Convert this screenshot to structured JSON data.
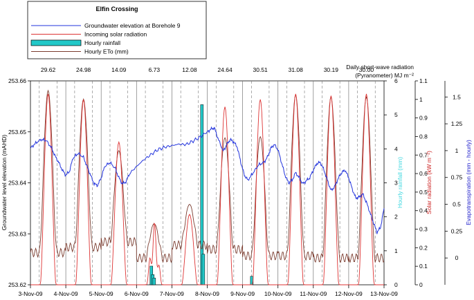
{
  "chart_data": {
    "type": "line",
    "title": "Elfin Crossing",
    "x_labels": [
      "3-Nov-09",
      "4-Nov-09",
      "5-Nov-09",
      "6-Nov-09",
      "7-Nov-09",
      "8-Nov-09",
      "9-Nov-09",
      "10-Nov-09",
      "11-Nov-09",
      "12-Nov-09",
      "13-Nov-09"
    ],
    "daily_radiation_title": "Daily short-wave radiation",
    "daily_radiation_unit": "(Pyranometer)  MJ m⁻²",
    "daily_radiation_totals": [
      "29.62",
      "24.98",
      "14.09",
      "6.73",
      "12.08",
      "24.64",
      "30.51",
      "31.08",
      "30.19",
      "30.00"
    ],
    "axes": {
      "groundwater": {
        "label": "Groundwater level elevation (mAHD)",
        "ylim": [
          253.62,
          253.66
        ],
        "ticks": [
          "253.62",
          "253.63",
          "253.64",
          "253.65",
          "253.66"
        ]
      },
      "rainfall": {
        "label": "Hourly rainfall (mm)",
        "ylim": [
          0,
          6
        ],
        "ticks": [
          "0",
          "1",
          "2",
          "3",
          "4",
          "5",
          "6"
        ],
        "color": "#3fd8e0"
      },
      "solar": {
        "label": "Solar radiation (kW m⁻²)",
        "ylim": [
          0,
          1.1
        ],
        "ticks": [
          "0",
          "0.1",
          "0.2",
          "0.3",
          "0.4",
          "0.5",
          "0.6",
          "0.7",
          "0.8",
          "0.9",
          "1",
          "1.1"
        ],
        "color": "#cc2020"
      },
      "eto": {
        "label": "Evapotranspiration (mm - hourly)",
        "ylim": [
          -0.25,
          1.65
        ],
        "ticks": [
          "0",
          "0.25",
          "0.5",
          "0.75",
          "1",
          "1.25",
          "1.5"
        ],
        "color": "#2020cc"
      }
    },
    "legend": {
      "position": "top-left",
      "entries": [
        {
          "label": "Groundwater elevation at Borehole 9",
          "color": "#2233dd",
          "kind": "line"
        },
        {
          "label": "Incoming solar radiation",
          "color": "#dd3333",
          "kind": "line"
        },
        {
          "label": "Hourly rainfall",
          "color": "#22c8c8",
          "kind": "bar"
        },
        {
          "label": "Hourly ETo (mm)",
          "color": "#7a3b2e",
          "kind": "line"
        }
      ]
    },
    "series": [
      {
        "name": "Groundwater elevation at Borehole 9",
        "axis": "groundwater",
        "x": [
          0,
          0.15,
          0.3,
          0.45,
          0.6,
          0.7,
          0.8,
          0.9,
          1.0,
          1.1,
          1.2,
          1.35,
          1.5,
          1.6,
          1.7,
          1.8,
          1.9,
          2.0,
          2.1,
          2.25,
          2.4,
          2.5,
          2.6,
          2.7,
          2.8,
          3.0,
          3.2,
          3.4,
          3.6,
          3.8,
          4.0,
          4.2,
          4.4,
          4.6,
          4.8,
          5.0,
          5.1,
          5.2,
          5.3,
          5.45,
          5.55,
          5.65,
          5.75,
          5.85,
          5.95,
          6.05,
          6.15,
          6.3,
          6.45,
          6.6,
          6.7,
          6.8,
          6.9,
          7.0,
          7.1,
          7.2,
          7.3,
          7.4,
          7.5,
          7.6,
          7.7,
          7.8,
          7.9,
          8.0,
          8.1,
          8.2,
          8.3,
          8.4,
          8.5,
          8.6,
          8.7,
          8.8,
          8.9,
          9.0,
          9.1,
          9.2,
          9.3,
          9.4,
          9.5,
          9.6,
          9.7,
          9.8,
          9.9,
          10.0
        ],
        "values": [
          253.6468,
          253.6478,
          253.6485,
          253.6483,
          253.6468,
          253.6452,
          253.644,
          253.6425,
          253.6415,
          253.6422,
          253.6448,
          253.6458,
          253.645,
          253.6432,
          253.6415,
          253.6398,
          253.6395,
          253.641,
          253.6432,
          253.644,
          253.6428,
          253.641,
          253.6398,
          253.6402,
          253.6418,
          253.6432,
          253.6445,
          253.6455,
          253.6465,
          253.647,
          253.6473,
          253.6476,
          253.6475,
          253.6482,
          253.649,
          253.65,
          253.6505,
          253.6508,
          253.6488,
          253.6462,
          253.6475,
          253.6485,
          253.648,
          253.647,
          253.644,
          253.6415,
          253.6405,
          253.642,
          253.6435,
          253.644,
          253.645,
          253.6468,
          253.6475,
          253.6465,
          253.644,
          253.6415,
          253.64,
          253.6405,
          253.642,
          253.641,
          253.6398,
          253.6404,
          253.641,
          253.6425,
          253.6438,
          253.644,
          253.6425,
          253.6405,
          253.6385,
          253.6392,
          253.6408,
          253.642,
          253.6425,
          253.641,
          253.6388,
          253.637,
          253.6372,
          253.6378,
          253.6362,
          253.6342,
          253.6322,
          253.6303,
          253.6312,
          253.635
        ]
      },
      {
        "name": "Incoming solar radiation",
        "axis": "solar",
        "daily_peaks": [
          1.03,
          1.0,
          0.77,
          0.34,
          0.38,
          0.96,
          1.0,
          1.03,
          1.02,
          1.03
        ],
        "peak_offset_day": 0.5,
        "half_width_day": 0.22
      },
      {
        "name": "Hourly ETo (mm)",
        "axis": "eto",
        "daily_peaks": [
          1.56,
          1.48,
          1.0,
          0.32,
          0.5,
          1.12,
          1.13,
          1.52,
          1.5,
          1.5
        ],
        "night_base": [
          0.05,
          0.1,
          0.15,
          0.0,
          0.12,
          0.08,
          0.02,
          0.02,
          0.0,
          0.0
        ]
      },
      {
        "name": "Hourly rainfall",
        "axis": "rainfall",
        "bars": [
          {
            "x": 3.42,
            "value": 0.55
          },
          {
            "x": 3.46,
            "value": 0.3
          },
          {
            "x": 3.5,
            "value": 0.2
          },
          {
            "x": 4.85,
            "value": 5.3
          },
          {
            "x": 4.89,
            "value": 0.9
          },
          {
            "x": 6.26,
            "value": 0.25
          }
        ]
      }
    ],
    "grid": {
      "vertical_daily": true,
      "vertical_midday_dashed": true,
      "horizontal": false
    }
  }
}
